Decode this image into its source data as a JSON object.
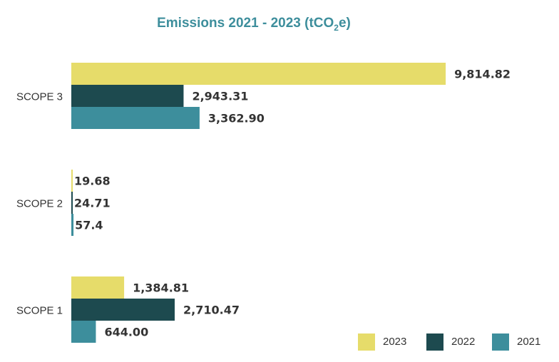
{
  "chart_data": {
    "type": "bar",
    "orientation": "horizontal",
    "title_main": "Emissions 2021 - 2023 (tCO",
    "title_sub": "2",
    "title_end": "e)",
    "categories": [
      "SCOPE 3",
      "SCOPE 2",
      "SCOPE 1"
    ],
    "series": [
      {
        "name": "2023",
        "color": "#e6dc6a",
        "values": [
          9814.82,
          19.68,
          1384.81
        ],
        "labels": [
          "9,814.82",
          "19.68",
          "1,384.81"
        ]
      },
      {
        "name": "2022",
        "color": "#1d4a4f",
        "values": [
          2943.31,
          24.71,
          2710.47
        ],
        "labels": [
          "2,943.31",
          "24.71",
          "2,710.47"
        ]
      },
      {
        "name": "2021",
        "color": "#3d8e9c",
        "values": [
          3362.9,
          57.4,
          644.0
        ],
        "labels": [
          "3,362.90",
          "57.4",
          "644.00"
        ]
      }
    ],
    "xlim": [
      0,
      10500
    ],
    "grid": false,
    "legend_position": "bottom-right",
    "title_color": "#3d8e9c"
  }
}
